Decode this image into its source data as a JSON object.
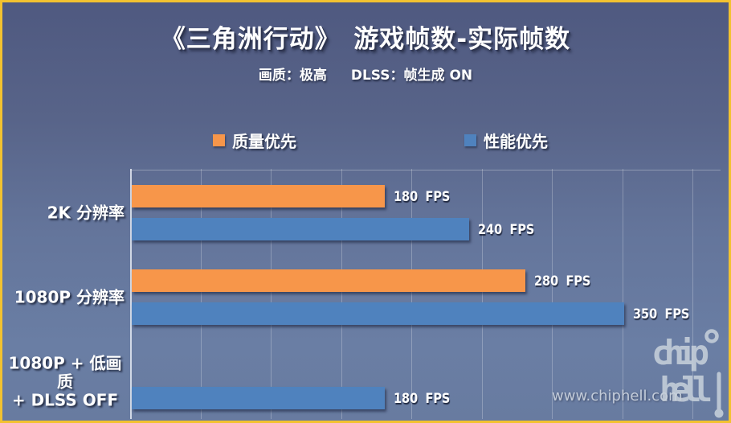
{
  "window": {
    "border_color": "#F2C230",
    "background_top": "#4F5980",
    "background_bottom": "#6A7EA4"
  },
  "header": {
    "title": "《三角洲行动》　游戏帧数-实际帧数",
    "subtitle_quality": "画质：极高",
    "subtitle_dlss": "DLSS：帧生成 ON"
  },
  "legend": {
    "items": [
      {
        "label": "质量优先",
        "color": "#F7964A"
      },
      {
        "label": "性能优先",
        "color": "#4F82BE"
      }
    ]
  },
  "watermark": {
    "url_text": "www.chiphell.com",
    "logo_line1": "chip",
    "logo_line2": "hell"
  },
  "chart_data": {
    "type": "bar",
    "orientation": "horizontal",
    "title": "《三角洲行动》 游戏帧数-实际帧数",
    "subtitle": "画质：极高  DLSS：帧生成 ON",
    "categories": [
      "2K 分辨率",
      "1080P 分辨率",
      "1080P + 低画质 + DLSS OFF"
    ],
    "category_display_lines": [
      [
        "2K 分辨率"
      ],
      [
        "1080P 分辨率"
      ],
      [
        "1080P + 低画质",
        "+ DLSS OFF"
      ]
    ],
    "series": [
      {
        "name": "质量优先",
        "color": "#F7964A",
        "values": [
          180,
          280,
          null
        ]
      },
      {
        "name": "性能优先",
        "color": "#4F82BE",
        "values": [
          240,
          350,
          180
        ]
      }
    ],
    "value_labels": [
      [
        "180 FPS",
        "280 FPS",
        null
      ],
      [
        "240 FPS",
        "350 FPS",
        "180 FPS"
      ]
    ],
    "value_suffix": " FPS",
    "unit": "FPS",
    "xlim": [
      0,
      400
    ],
    "gridline_step": 50,
    "grid": true,
    "axis_labels_shown": false,
    "legend_position": "top"
  }
}
